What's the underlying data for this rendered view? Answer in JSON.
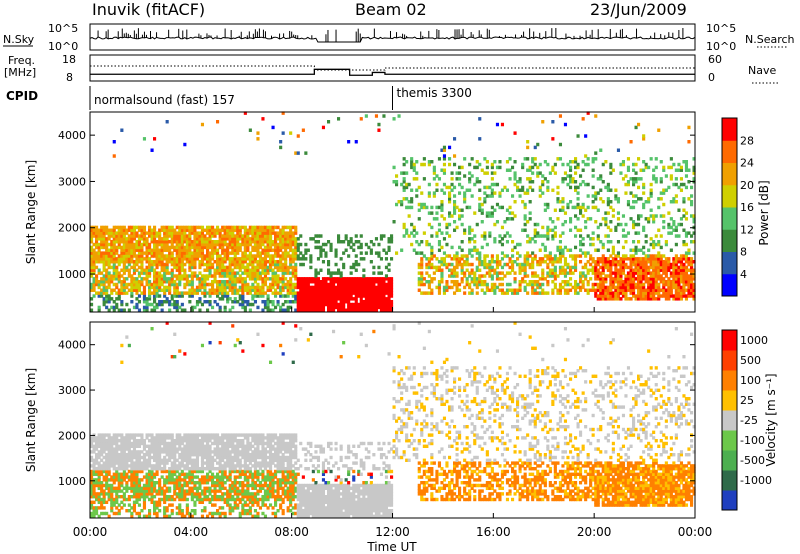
{
  "header": {
    "station": "Inuvik (fitACF)",
    "beam": "Beam 02",
    "date": "23/Jun/2009"
  },
  "summary_panels": {
    "nsky_label": "N.Sky",
    "nsky_scale_top": "10^5",
    "nsky_scale_bottom": "10^0",
    "nsearch_label": "N.Search",
    "nsearch_scale_top": "10^5",
    "nsearch_scale_bottom": "10^0",
    "freq_label_1": "Freq.",
    "freq_label_2": "[MHz]",
    "freq_ticks": [
      "18",
      "8"
    ],
    "nave_label": "Nave",
    "nave_ticks": [
      "60",
      "0"
    ],
    "cpid_label": "CPID",
    "cpid_segments": [
      {
        "label": "normalsound (fast) 157",
        "start_hour": 0,
        "end_hour": 12
      },
      {
        "label": "themis 3300",
        "start_hour": 12,
        "end_hour": 24
      }
    ]
  },
  "x_axis": {
    "label": "Time UT",
    "ticks": [
      "00:00",
      "04:00",
      "08:00",
      "12:00",
      "16:00",
      "20:00",
      "00:00"
    ]
  },
  "chart_data": [
    {
      "type": "heatmap",
      "name": "power",
      "ylabel": "Slant Range [km]",
      "yticks": [
        "1000",
        "2000",
        "3000",
        "4000"
      ],
      "ylim": [
        180,
        4500
      ],
      "xlim_hours": [
        0,
        24
      ],
      "colorbar": {
        "label": "Power [dB]",
        "tick_labels": [
          "4",
          "8",
          "12",
          "16",
          "20",
          "24",
          "28"
        ],
        "colors": [
          "#0000ff",
          "#2a5aa8",
          "#3b8a3b",
          "#55c36a",
          "#cfcf00",
          "#f0a000",
          "#ff6a00",
          "#ff0000"
        ]
      }
    },
    {
      "type": "heatmap",
      "name": "velocity",
      "ylabel": "Slant Range [km]",
      "yticks": [
        "1000",
        "2000",
        "3000",
        "4000"
      ],
      "ylim": [
        180,
        4500
      ],
      "xlim_hours": [
        0,
        24
      ],
      "colorbar": {
        "label": "Velocity [m s⁻¹]",
        "tick_labels": [
          "1000",
          "500",
          "100",
          "25",
          "-25",
          "-100",
          "-500",
          "-1000"
        ],
        "colors": [
          "#1f3fbf",
          "#2f6a4a",
          "#4caf50",
          "#6cc84a",
          "#c8c8c8",
          "#ffc000",
          "#ff8000",
          "#ff4000",
          "#ff0000"
        ]
      }
    }
  ]
}
